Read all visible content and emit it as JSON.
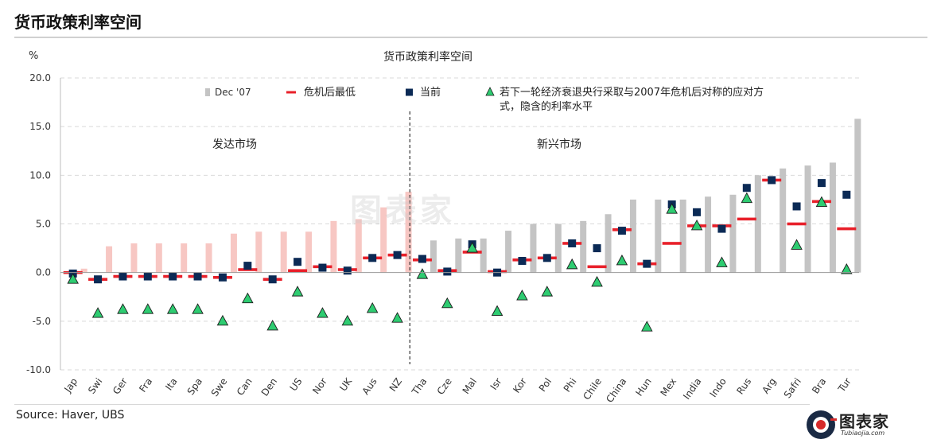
{
  "page_title": "货币政策利率空间",
  "source": "Source:  Haver, UBS",
  "logo": {
    "text": "图表家",
    "sub": "Tubiaojia.com",
    "icon": "tubiaojia-logo-icon"
  },
  "watermark": "图表家",
  "chart_data": {
    "type": "bar",
    "title": "货币政策利率空间",
    "ylabel": "%",
    "ylim": [
      -10,
      20
    ],
    "yticks": [
      20,
      15,
      10,
      5,
      0,
      -5,
      -10
    ],
    "ytick_labels": [
      "20.0",
      "15.0",
      "10.0",
      "5.0",
      "0.0",
      "-5.0",
      "-10.0"
    ],
    "grid": true,
    "legend_placement": "top",
    "group_labels": [
      "发达市场",
      "新兴市场"
    ],
    "divider_after_index": 13,
    "colors": {
      "dm_bar": "#f7c7c3",
      "em_bar": "#c4c4c4",
      "min": "#e8202a",
      "current": "#0b2a55",
      "implied": "#2ecc71"
    },
    "categories": [
      "Jap",
      "Swi",
      "Ger",
      "Fra",
      "Ita",
      "Spa",
      "Swe",
      "Can",
      "Den",
      "US",
      "Nor",
      "UK",
      "Aus",
      "NZ",
      "Tha",
      "Cze",
      "Mal",
      "Isr",
      "Kor",
      "Pol",
      "Phi",
      "Chile",
      "China",
      "Hun",
      "Mex",
      "India",
      "Indo",
      "Rus",
      "Arg",
      "Safri",
      "Bra",
      "Tur"
    ],
    "series": [
      {
        "name": "Dec '07",
        "kind": "bar",
        "values": [
          0.4,
          2.7,
          3.0,
          3.0,
          3.0,
          3.0,
          4.0,
          4.2,
          4.2,
          4.2,
          5.3,
          5.5,
          6.7,
          8.3,
          3.3,
          3.5,
          3.5,
          4.3,
          5.0,
          5.0,
          5.3,
          6.0,
          7.5,
          7.5,
          7.5,
          7.8,
          8.0,
          10.0,
          10.7,
          11.0,
          11.3,
          15.8
        ]
      },
      {
        "name": "危机后最低",
        "kind": "dash",
        "values": [
          0.0,
          -0.7,
          -0.4,
          -0.4,
          -0.4,
          -0.4,
          -0.5,
          0.3,
          -0.7,
          0.2,
          0.6,
          0.3,
          1.5,
          1.8,
          1.3,
          0.2,
          2.1,
          0.1,
          1.3,
          1.5,
          3.0,
          0.6,
          4.4,
          0.9,
          3.0,
          4.8,
          4.8,
          5.5,
          9.5,
          5.0,
          7.3,
          4.5
        ]
      },
      {
        "name": "当前",
        "kind": "square",
        "values": [
          -0.1,
          -0.7,
          -0.4,
          -0.4,
          -0.4,
          -0.4,
          -0.5,
          0.7,
          -0.7,
          1.1,
          0.5,
          0.2,
          1.5,
          1.8,
          1.4,
          0.1,
          2.9,
          0.0,
          1.2,
          1.5,
          3.0,
          2.5,
          4.3,
          0.9,
          7.0,
          6.2,
          4.5,
          8.7,
          9.5,
          6.8,
          9.2,
          8.0
        ]
      },
      {
        "name": "若下一轮经济衰退央行采取与2007年危机后对称的应对方式，隐含的利率水平",
        "kind": "triangle",
        "values": [
          -0.7,
          -4.2,
          -3.8,
          -3.8,
          -3.8,
          -3.8,
          -5.0,
          -2.7,
          -5.5,
          -2.0,
          -4.2,
          -5.0,
          -3.7,
          -4.7,
          -0.2,
          -3.2,
          2.5,
          -4.0,
          -2.4,
          -2.0,
          0.8,
          -1.0,
          1.2,
          -5.6,
          6.5,
          4.8,
          1.0,
          7.6,
          null,
          2.8,
          7.2,
          0.3
        ]
      }
    ]
  }
}
